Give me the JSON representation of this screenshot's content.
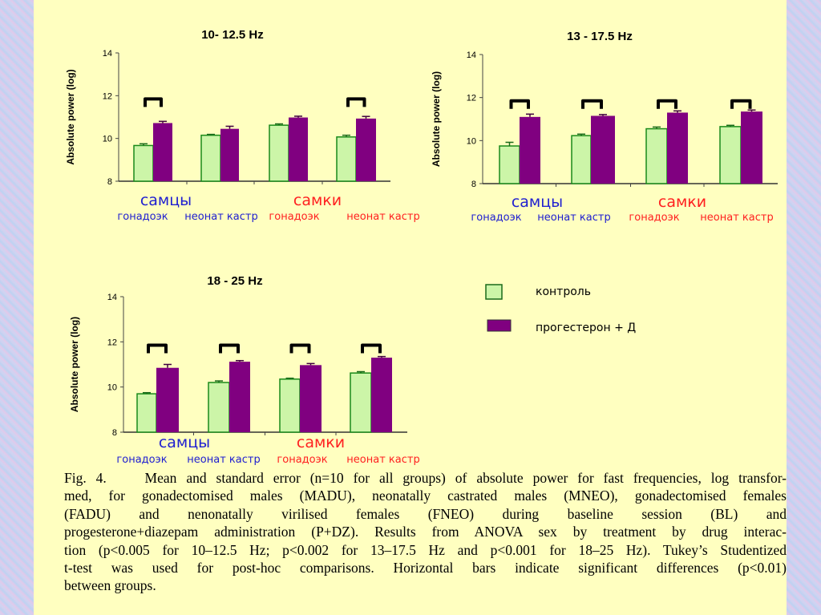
{
  "colors": {
    "control_fill": "#ccf5a8",
    "control_stroke": "#1a8a1a",
    "treatment_fill": "#800080",
    "male_label": "#2020d0",
    "female_label": "#ff2020",
    "bracket": "#000000"
  },
  "legend": {
    "items": [
      {
        "label": "контроль",
        "series": "control"
      },
      {
        "label": "прогестерон + Д",
        "series": "treatment"
      }
    ]
  },
  "chart_data": [
    {
      "type": "bar",
      "title": "10- 12.5 Hz",
      "ylabel": "Absolute power (log)",
      "xlabel": "",
      "ylim": [
        8,
        14
      ],
      "yticks": [
        "8",
        "10",
        "12",
        "14"
      ],
      "group_labels": [
        "самцы",
        "самки"
      ],
      "categories": [
        "гонадоэк",
        "неонат кастр",
        "гонадоэк",
        "неонат кастр"
      ],
      "category_sex": [
        "male",
        "male",
        "female",
        "female"
      ],
      "series": [
        {
          "name": "контроль",
          "values": [
            9.67,
            10.15,
            10.62,
            10.07
          ],
          "errors": [
            0.08,
            0.04,
            0.06,
            0.08
          ]
        },
        {
          "name": "прогестерон + Д",
          "values": [
            10.72,
            10.45,
            10.98,
            10.93
          ],
          "errors": [
            0.08,
            0.12,
            0.06,
            0.1
          ]
        }
      ],
      "significant": [
        true,
        false,
        false,
        true
      ],
      "legend": "right (shared)"
    },
    {
      "type": "bar",
      "title": "13 - 17.5 Hz",
      "ylabel": "Absolute power (log)",
      "xlabel": "",
      "ylim": [
        8,
        14
      ],
      "yticks": [
        "8",
        "10",
        "12",
        "14"
      ],
      "group_labels": [
        "самцы",
        "самки"
      ],
      "categories": [
        "гонадоэк",
        "неонат кастр",
        "гонадоэк",
        "неонат кастр"
      ],
      "category_sex": [
        "male",
        "male",
        "female",
        "female"
      ],
      "series": [
        {
          "name": "контроль",
          "values": [
            9.75,
            10.23,
            10.55,
            10.65
          ],
          "errors": [
            0.17,
            0.07,
            0.08,
            0.06
          ]
        },
        {
          "name": "прогестерон + Д",
          "values": [
            11.1,
            11.15,
            11.3,
            11.35
          ],
          "errors": [
            0.13,
            0.06,
            0.08,
            0.07
          ]
        }
      ],
      "significant": [
        true,
        true,
        true,
        true
      ],
      "legend": "right (shared)"
    },
    {
      "type": "bar",
      "title": "18 - 25 Hz",
      "ylabel": "Absolute power (log)",
      "xlabel": "",
      "ylim": [
        8,
        14
      ],
      "yticks": [
        "8",
        "10",
        "12",
        "14"
      ],
      "group_labels": [
        "самцы",
        "самки"
      ],
      "categories": [
        "гонадоэк",
        "неонат кастр",
        "гонадоэк",
        "неонат кастр"
      ],
      "category_sex": [
        "male",
        "male",
        "female",
        "female"
      ],
      "series": [
        {
          "name": "контроль",
          "values": [
            9.7,
            10.2,
            10.35,
            10.62
          ],
          "errors": [
            0.05,
            0.07,
            0.04,
            0.06
          ]
        },
        {
          "name": "прогестерон + Д",
          "values": [
            10.85,
            11.12,
            10.97,
            11.3
          ],
          "errors": [
            0.15,
            0.05,
            0.07,
            0.05
          ]
        }
      ],
      "significant": [
        true,
        true,
        true,
        true
      ],
      "legend": "right (shared)"
    }
  ],
  "caption": {
    "lines": [
      "Fig. 4.    Mean and standard error (n=10 for all groups) of absolute power for fast frequencies, log transfor-",
      "med, for gonadectomised males (MADU), neonatally castrated males (MNEO), gonadectomised females",
      "(FADU) and nenonatally virilised females (FNEO) during baseline session (BL) and",
      "progesterone+diazepam administration (P+DZ). Results from ANOVA sex by treatment by drug interac-",
      "tion (p<0.005 for 10–12.5 Hz; p<0.002 for 13–17.5 Hz and p<0.001 for 18–25 Hz). Tukey’s Studentized",
      "t-test was used for post-hoc comparisons. Horizontal bars indicate significant differences (p<0.01)",
      "between groups."
    ]
  }
}
